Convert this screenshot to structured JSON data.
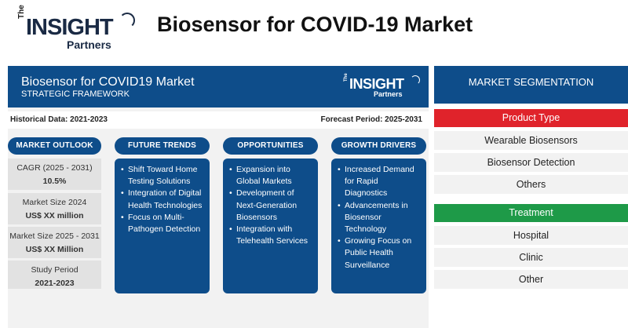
{
  "brand": {
    "the": "The",
    "insight": "INSIGHT",
    "partners": "Partners"
  },
  "page_title": "Biosensor for COVID-19 Market",
  "framework": {
    "title": "Biosensor for COVID19 Market",
    "subtitle": "STRATEGIC FRAMEWORK",
    "historical": "Historical Data: 2021-2023",
    "forecast": "Forecast Period: 2025-2031"
  },
  "outlook": {
    "header": "MARKET OUTLOOK",
    "stats": [
      {
        "label": "CAGR (2025 - 2031)",
        "value": "10.5%"
      },
      {
        "label": "Market Size 2024",
        "value": "US$ XX million"
      },
      {
        "label": "Market Size 2025 - 2031",
        "value": "US$ XX Million"
      },
      {
        "label": "Study Period",
        "value": "2021-2023"
      }
    ]
  },
  "columns": [
    {
      "header": "FUTURE TRENDS",
      "items": [
        "Shift Toward Home Testing Solutions",
        "Integration of Digital Health Technologies",
        "Focus on Multi-Pathogen Detection"
      ]
    },
    {
      "header": "OPPORTUNITIES",
      "items": [
        "Expansion into Global Markets",
        "Development of Next-Generation Biosensors",
        "Integration with Telehealth Services"
      ]
    },
    {
      "header": "GROWTH DRIVERS",
      "items": [
        "Increased Demand for Rapid Diagnostics",
        "Advancements in Biosensor Technology",
        "Growing Focus on Public Health Surveillance"
      ]
    }
  ],
  "segmentation": {
    "header": "MARKET SEGMENTATION",
    "groups": [
      {
        "title": "Product Type",
        "color": "#e0232b",
        "items": [
          "Wearable Biosensors",
          "Biosensor Detection",
          "Others"
        ]
      },
      {
        "title": "Treatment",
        "color": "#1e9a48",
        "items": [
          "Hospital",
          "Clinic",
          "Other"
        ]
      }
    ]
  }
}
